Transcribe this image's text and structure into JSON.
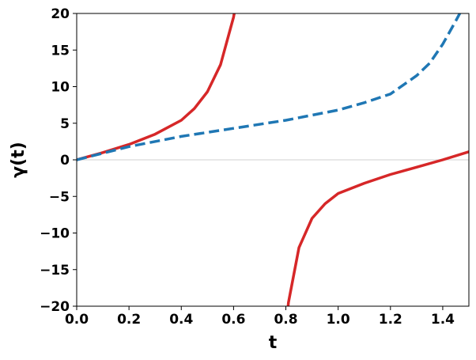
{
  "chart_data": {
    "type": "line",
    "title": "",
    "xlabel": "t",
    "ylabel": "γ(t)",
    "xlim": [
      0,
      1.5
    ],
    "ylim": [
      -20,
      20
    ],
    "xticks": [
      0.0,
      0.2,
      0.4,
      0.6,
      0.8,
      1.0,
      1.2,
      1.4
    ],
    "xtick_labels": [
      "0.0",
      "0.2",
      "0.4",
      "0.6",
      "0.8",
      "1.0",
      "1.2",
      "1.4"
    ],
    "yticks": [
      -20,
      -15,
      -10,
      -5,
      0,
      5,
      10,
      15,
      20
    ],
    "ytick_labels": [
      "−20",
      "−15",
      "−10",
      "−5",
      "0",
      "5",
      "10",
      "15",
      "20"
    ],
    "grid": false,
    "reference_line": {
      "y": 0,
      "color": "#d9d9d9"
    },
    "series": [
      {
        "style": "solid",
        "color": "#d62728",
        "x": [
          0,
          0.1,
          0.2,
          0.3,
          0.4,
          0.45,
          0.5,
          0.55,
          0.6,
          0.62,
          0.8,
          0.81,
          0.85,
          0.9,
          0.95,
          1.0,
          1.1,
          1.2,
          1.3,
          1.4,
          1.5
        ],
        "y": [
          0,
          1.0,
          2.1,
          3.5,
          5.4,
          7.0,
          9.3,
          13.0,
          19.5,
          23.5,
          -23.0,
          -19.5,
          -12.0,
          -8.0,
          -6.0,
          -4.6,
          -3.2,
          -2.0,
          -1.0,
          0.0,
          1.1
        ]
      },
      {
        "style": "dashed",
        "color": "#1f77b4",
        "x": [
          0,
          0.2,
          0.4,
          0.6,
          0.8,
          1.0,
          1.1,
          1.2,
          1.3,
          1.35,
          1.4,
          1.45,
          1.48
        ],
        "y": [
          0,
          1.8,
          3.2,
          4.3,
          5.4,
          6.8,
          7.8,
          9.0,
          11.5,
          13.2,
          15.8,
          19.0,
          21.0
        ]
      }
    ]
  }
}
